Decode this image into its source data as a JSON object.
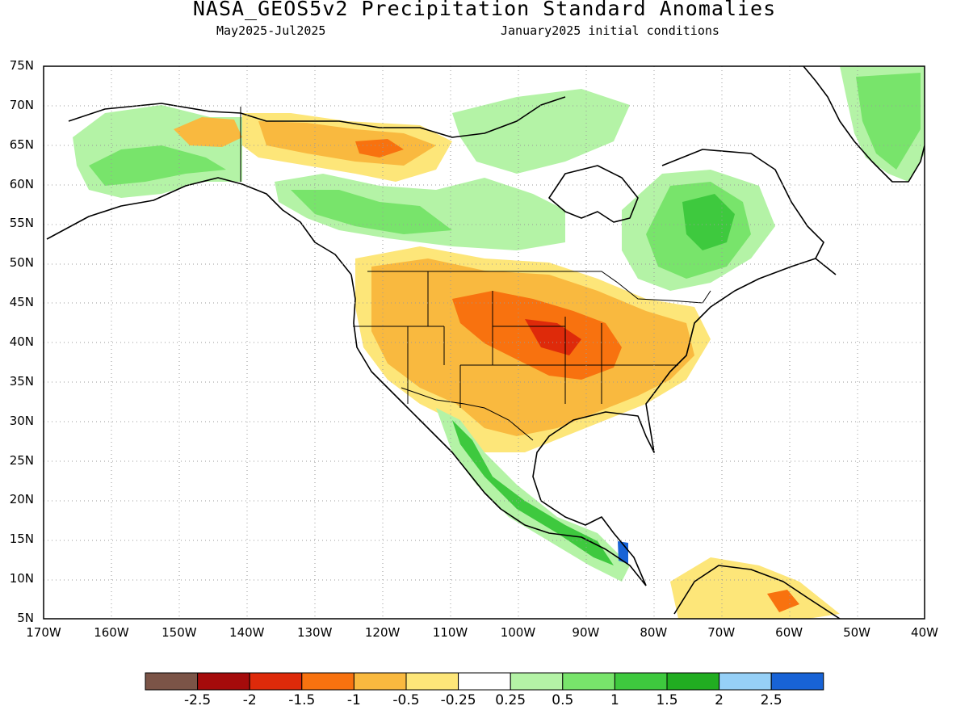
{
  "title": "NASA_GEOS5v2 Precipitation Standard Anomalies",
  "subtitle_left": "May2025-Jul2025",
  "subtitle_right": "January2025 initial conditions",
  "lat_labels": [
    "75N",
    "70N",
    "65N",
    "60N",
    "55N",
    "50N",
    "45N",
    "40N",
    "35N",
    "30N",
    "25N",
    "20N",
    "15N",
    "10N",
    "5N"
  ],
  "lon_labels": [
    "170W",
    "160W",
    "150W",
    "140W",
    "130W",
    "120W",
    "110W",
    "100W",
    "90W",
    "80W",
    "70W",
    "60W",
    "50W",
    "40W"
  ],
  "colorbar": {
    "colors": [
      "#7b5447",
      "#a50b0b",
      "#de2a0a",
      "#f8720f",
      "#f9b93f",
      "#fde679",
      "#ffffff",
      "#b4f3a6",
      "#78e46b",
      "#3ec93e",
      "#21ad21",
      "#96d0f7",
      "#1863d6"
    ],
    "labels": [
      "-2.5",
      "-2",
      "-1.5",
      "-1",
      "-0.5",
      "-0.25",
      "0.25",
      "0.5",
      "1",
      "1.5",
      "2",
      "2.5"
    ]
  },
  "chart_data": {
    "type": "heatmap",
    "title": "NASA_GEOS5v2 Precipitation Standard Anomalies",
    "subtitle": "May2025-Jul2025  January2025 initial conditions",
    "xlim": [
      -170,
      -40
    ],
    "ylim": [
      5,
      75
    ],
    "grid": true,
    "scale_thresholds": [
      -2.5,
      -2,
      -1.5,
      -1,
      -0.5,
      -0.25,
      0.25,
      0.5,
      1,
      1.5,
      2,
      2.5
    ],
    "regions": [
      {
        "name": "Central US (Missouri/Iowa/Kansas)",
        "anomaly_class": "-1.5 to -1"
      },
      {
        "name": "Western and Central US",
        "anomaly_class": "-1 to -0.5"
      },
      {
        "name": "Western Canada (Yukon/NWT)",
        "anomaly_class": "-1 to -0.5"
      },
      {
        "name": "Alaska",
        "anomaly_class": "0.25 to 1"
      },
      {
        "name": "Eastern Canada (Quebec/Labrador)",
        "anomaly_class": "0.5 to 1.5"
      },
      {
        "name": "Greenland",
        "anomaly_class": "0.25 to 1"
      },
      {
        "name": "Western Mexico",
        "anomaly_class": "0.5 to 1.5"
      },
      {
        "name": "Central America",
        "anomaly_class": "0.5 to 2.5"
      },
      {
        "name": "Northern Venezuela",
        "anomaly_class": "-1.5 to -0.5"
      }
    ]
  }
}
